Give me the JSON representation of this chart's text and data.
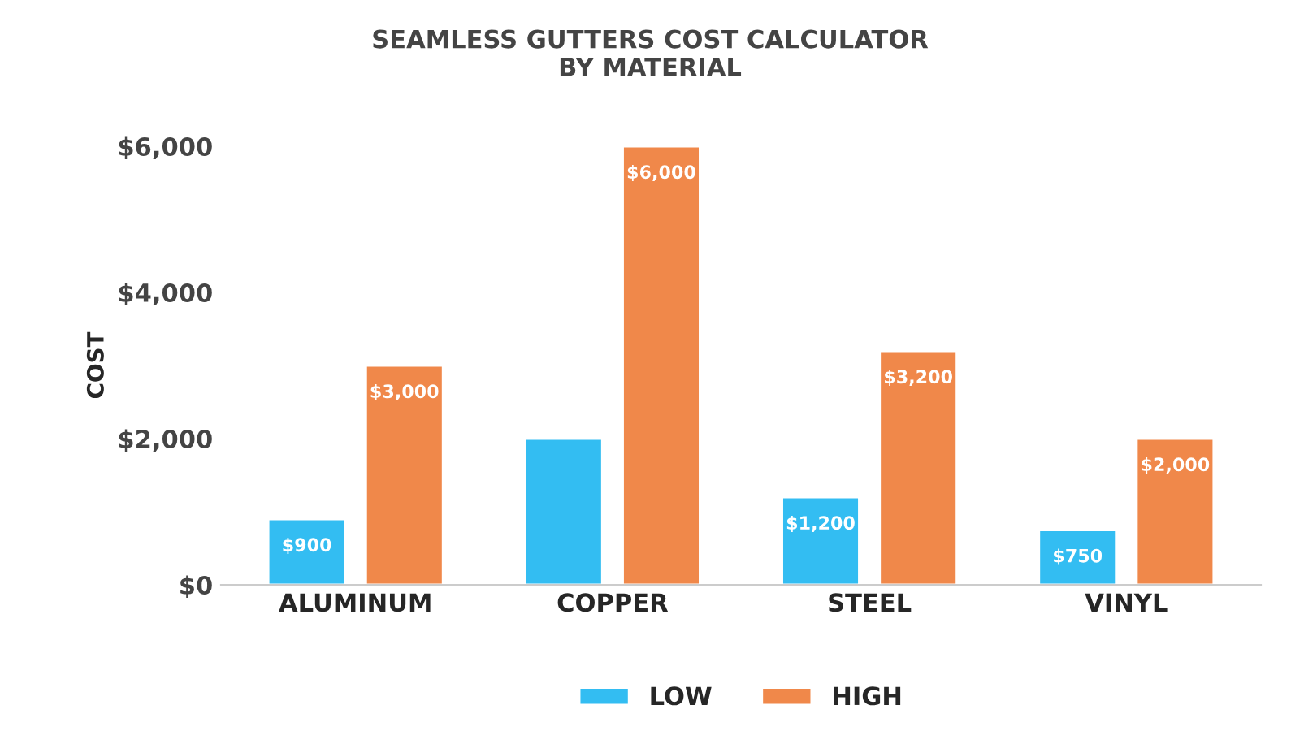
{
  "chart_data": {
    "type": "bar",
    "title": "SEAMLESS GUTTERS COST CALCULATOR\nBY MATERIAL",
    "ylabel": "COST",
    "categories": [
      "ALUMINUM",
      "COPPER",
      "STEEL",
      "VINYL"
    ],
    "series": [
      {
        "name": "LOW",
        "color": "#33bdf2",
        "values": [
          900,
          2000,
          1200,
          750
        ],
        "value_labels": [
          "$900",
          null,
          "$1,200",
          "$750"
        ]
      },
      {
        "name": "HIGH",
        "color": "#f0884a",
        "values": [
          3000,
          6000,
          3200,
          2000
        ],
        "value_labels": [
          "$3,000",
          "$6,000",
          "$3,200",
          "$2,000"
        ]
      }
    ],
    "ylim": [
      0,
      6000
    ],
    "yticks": [
      {
        "value": 0,
        "label": "$0"
      },
      {
        "value": 2000,
        "label": "$2,000"
      },
      {
        "value": 4000,
        "label": "$4,000"
      },
      {
        "value": 6000,
        "label": "$6,000"
      }
    ],
    "grid": false,
    "legend": "bottom"
  }
}
